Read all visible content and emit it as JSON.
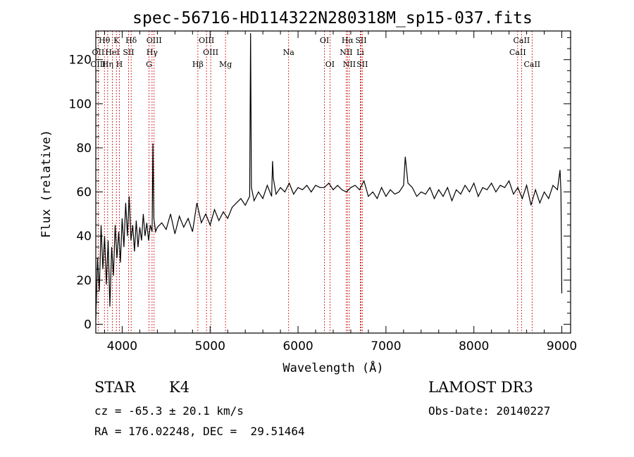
{
  "chart_data": {
    "type": "line",
    "title": "spec-56716-HD114322N280318M_sp15-037.fits",
    "xlabel": "Wavelength (Å)",
    "ylabel": "Flux (relative)",
    "xlim": [
      3700,
      9100
    ],
    "ylim": [
      -4,
      133
    ],
    "xticks": [
      4000,
      5000,
      6000,
      7000,
      8000,
      9000
    ],
    "yticks": [
      0,
      20,
      40,
      60,
      80,
      100,
      120
    ],
    "spectrum": {
      "x": [
        3700,
        3720,
        3740,
        3760,
        3780,
        3800,
        3820,
        3840,
        3860,
        3880,
        3900,
        3920,
        3940,
        3960,
        3980,
        4000,
        4020,
        4040,
        4060,
        4080,
        4100,
        4120,
        4140,
        4160,
        4180,
        4200,
        4220,
        4240,
        4260,
        4280,
        4300,
        4320,
        4340,
        4350,
        4360,
        4380,
        4400,
        4450,
        4500,
        4550,
        4600,
        4650,
        4700,
        4750,
        4800,
        4850,
        4900,
        4950,
        5000,
        5050,
        5100,
        5150,
        5200,
        5250,
        5300,
        5350,
        5400,
        5450,
        5460,
        5470,
        5500,
        5550,
        5600,
        5650,
        5700,
        5710,
        5720,
        5750,
        5800,
        5850,
        5900,
        5950,
        6000,
        6050,
        6100,
        6150,
        6200,
        6250,
        6300,
        6350,
        6400,
        6450,
        6500,
        6550,
        6600,
        6650,
        6700,
        6750,
        6800,
        6850,
        6900,
        6950,
        7000,
        7050,
        7100,
        7150,
        7200,
        7220,
        7250,
        7300,
        7350,
        7400,
        7450,
        7500,
        7550,
        7600,
        7650,
        7700,
        7750,
        7800,
        7850,
        7900,
        7950,
        8000,
        8050,
        8100,
        8150,
        8200,
        8250,
        8300,
        8350,
        8400,
        8450,
        8500,
        8550,
        8600,
        8650,
        8700,
        8750,
        8800,
        8850,
        8900,
        8950,
        8980,
        8990,
        9000
      ],
      "y": [
        2,
        30,
        15,
        45,
        25,
        40,
        18,
        38,
        8,
        35,
        22,
        45,
        30,
        42,
        28,
        48,
        35,
        55,
        40,
        58,
        38,
        45,
        33,
        47,
        35,
        44,
        38,
        50,
        40,
        46,
        38,
        45,
        42,
        82,
        48,
        42,
        44,
        46,
        43,
        50,
        41,
        49,
        44,
        48,
        42,
        55,
        46,
        50,
        45,
        52,
        47,
        51,
        48,
        53,
        55,
        57,
        54,
        58,
        132,
        62,
        56,
        60,
        57,
        63,
        58,
        74,
        66,
        59,
        62,
        60,
        64,
        59,
        62,
        61,
        63,
        60,
        63,
        62,
        62,
        64,
        61,
        63,
        61,
        60,
        62,
        63,
        61,
        65,
        58,
        60,
        57,
        62,
        58,
        61,
        59,
        60,
        63,
        76,
        64,
        62,
        58,
        60,
        59,
        62,
        57,
        61,
        58,
        62,
        56,
        61,
        59,
        63,
        60,
        64,
        58,
        62,
        61,
        64,
        60,
        63,
        62,
        65,
        59,
        62,
        57,
        63,
        54,
        61,
        55,
        60,
        57,
        63,
        61,
        70,
        60,
        14
      ]
    },
    "lines": [
      {
        "label": "Hθ",
        "x": 3798,
        "row": 0
      },
      {
        "label": "OII",
        "x": 3727,
        "row": 1
      },
      {
        "label": "OIII",
        "x": 3727,
        "row": 2
      },
      {
        "label": "K",
        "x": 3934,
        "row": 0
      },
      {
        "label": "HeI",
        "x": 3889,
        "row": 1
      },
      {
        "label": "Hη",
        "x": 3835,
        "row": 2
      },
      {
        "label": "Hδ",
        "x": 4102,
        "row": 0
      },
      {
        "label": "SII",
        "x": 4072,
        "row": 1
      },
      {
        "label": "H",
        "x": 3968,
        "row": 2
      },
      {
        "label": "OIII",
        "x": 4363,
        "row": 0
      },
      {
        "label": "Hγ",
        "x": 4340,
        "row": 1
      },
      {
        "label": "G",
        "x": 4305,
        "row": 2
      },
      {
        "label": "OIII",
        "x": 4959,
        "row": 0
      },
      {
        "label": "OIII",
        "x": 5007,
        "row": 1
      },
      {
        "label": "Hβ",
        "x": 4861,
        "row": 2
      },
      {
        "label": "Mg",
        "x": 5175,
        "row": 2
      },
      {
        "label": "Na",
        "x": 5893,
        "row": 1
      },
      {
        "label": "OI",
        "x": 6300,
        "row": 0
      },
      {
        "label": "OI",
        "x": 6363,
        "row": 2
      },
      {
        "label": "Hα",
        "x": 6563,
        "row": 0
      },
      {
        "label": "SII",
        "x": 6716,
        "row": 0
      },
      {
        "label": "NII",
        "x": 6548,
        "row": 1
      },
      {
        "label": "Li",
        "x": 6708,
        "row": 1
      },
      {
        "label": "NII",
        "x": 6584,
        "row": 2
      },
      {
        "label": "SII",
        "x": 6731,
        "row": 2
      },
      {
        "label": "CaII",
        "x": 8542,
        "row": 0
      },
      {
        "label": "CaII",
        "x": 8498,
        "row": 1
      },
      {
        "label": "CaII",
        "x": 8662,
        "row": 2
      }
    ],
    "colors": {
      "spectrum": "#000000",
      "line_markers": "#cc0000",
      "frame": "#000000"
    }
  },
  "footer": {
    "object_class": "STAR",
    "subclass": "K4",
    "survey": "LAMOST DR3",
    "redshift": "cz = -65.3 ± 20.1 km/s",
    "obs_date": "Obs-Date: 20140227",
    "coords": "RA = 176.02248, DEC =  29.51464"
  }
}
